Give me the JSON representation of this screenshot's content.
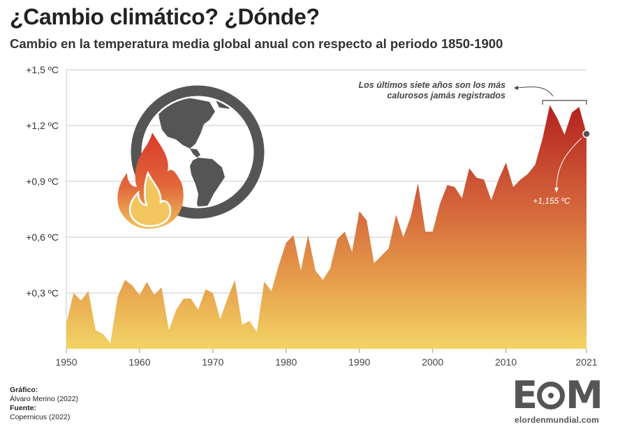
{
  "title": "¿Cambio climático? ¿Dónde?",
  "subtitle": "Cambio en la temperatura media global anual con respecto al periodo 1850-1900",
  "annotation": {
    "text_line1": "Los últimos siete años son los más",
    "text_line2": "calurosos jamás registrados",
    "last_value_label": "+1,155 ºC"
  },
  "credits": {
    "chart_label": "Gráfico:",
    "chart_author": "Álvaro Merino (2022)",
    "source_label": "Fuente:",
    "source": "Copernicus (2022)"
  },
  "logo": {
    "mark": "EOM",
    "url": "elordenmundial.com"
  },
  "icon": "earth-with-flame-icon",
  "colors": {
    "fill_top": "#b82a26",
    "fill_mid": "#d8643a",
    "fill_bottom": "#f2cf62",
    "icon_gray": "#555555",
    "flame_red": "#c73a26"
  },
  "chart_data": {
    "type": "area",
    "x": [
      1950,
      1951,
      1952,
      1953,
      1954,
      1955,
      1956,
      1957,
      1958,
      1959,
      1960,
      1961,
      1962,
      1963,
      1964,
      1965,
      1966,
      1967,
      1968,
      1969,
      1970,
      1971,
      1972,
      1973,
      1974,
      1975,
      1976,
      1977,
      1978,
      1979,
      1980,
      1981,
      1982,
      1983,
      1984,
      1985,
      1986,
      1987,
      1988,
      1989,
      1990,
      1991,
      1992,
      1993,
      1994,
      1995,
      1996,
      1997,
      1998,
      1999,
      2000,
      2001,
      2002,
      2003,
      2004,
      2005,
      2006,
      2007,
      2008,
      2009,
      2010,
      2011,
      2012,
      2013,
      2014,
      2015,
      2016,
      2017,
      2018,
      2019,
      2020,
      2021
    ],
    "values": [
      0.14,
      0.3,
      0.26,
      0.31,
      0.1,
      0.08,
      0.03,
      0.28,
      0.37,
      0.34,
      0.29,
      0.36,
      0.29,
      0.33,
      0.1,
      0.21,
      0.27,
      0.27,
      0.21,
      0.32,
      0.3,
      0.16,
      0.27,
      0.37,
      0.13,
      0.15,
      0.09,
      0.36,
      0.31,
      0.45,
      0.57,
      0.61,
      0.42,
      0.61,
      0.42,
      0.37,
      0.43,
      0.59,
      0.63,
      0.52,
      0.74,
      0.69,
      0.46,
      0.5,
      0.54,
      0.72,
      0.6,
      0.71,
      0.89,
      0.63,
      0.63,
      0.78,
      0.88,
      0.87,
      0.81,
      0.97,
      0.92,
      0.91,
      0.8,
      0.91,
      1.0,
      0.87,
      0.91,
      0.94,
      0.99,
      1.13,
      1.31,
      1.24,
      1.15,
      1.27,
      1.3,
      1.155
    ],
    "ylim": [
      0,
      1.5
    ],
    "xlim": [
      1950,
      2021
    ],
    "x_ticks": [
      1950,
      1960,
      1970,
      1980,
      1990,
      2000,
      2010,
      2021
    ],
    "y_ticks": [
      0.3,
      0.6,
      0.9,
      1.2,
      1.5
    ],
    "y_tick_labels": [
      "+0,3 ºC",
      "+0,6 ºC",
      "+0,9 ºC",
      "+1,2 ºC",
      "+1,5 ºC"
    ],
    "grid": true,
    "highlight_range": [
      2015,
      2021
    ]
  }
}
